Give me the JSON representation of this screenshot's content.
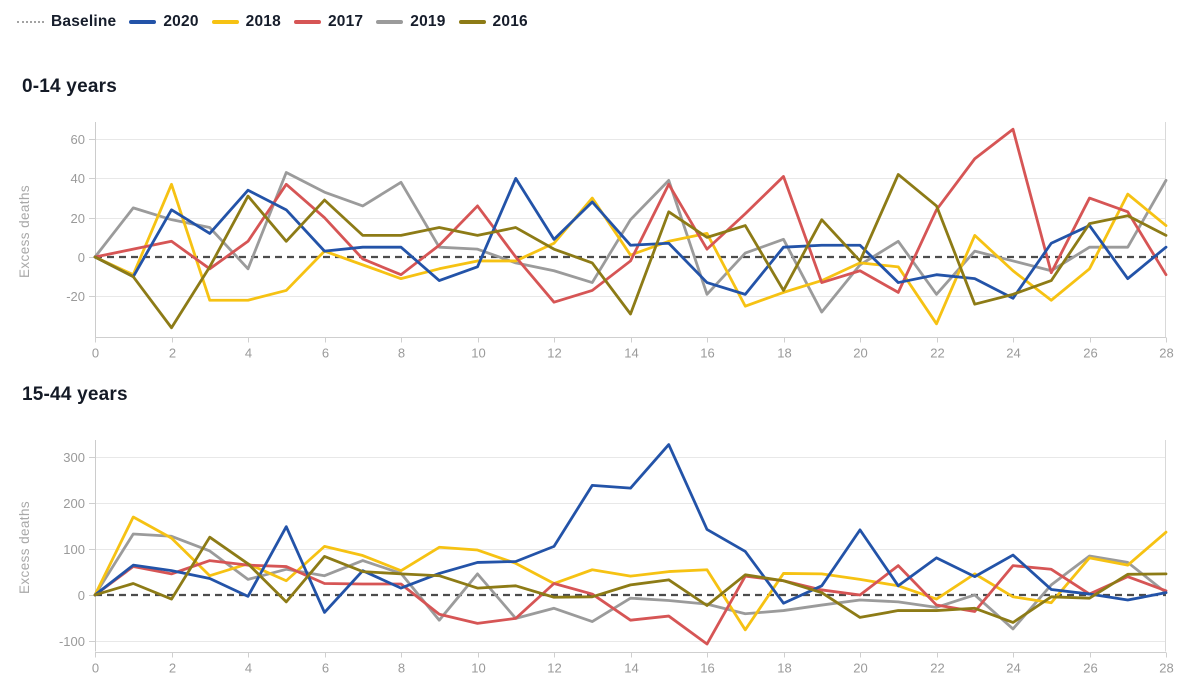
{
  "legend": {
    "items": [
      {
        "label": "Baseline",
        "style": "dotted",
        "color": "#a3a3a3"
      },
      {
        "label": "2020",
        "style": "solid",
        "color": "#2353a8"
      },
      {
        "label": "2018",
        "style": "solid",
        "color": "#f6c213"
      },
      {
        "label": "2017",
        "style": "solid",
        "color": "#d65555"
      },
      {
        "label": "2019",
        "style": "solid",
        "color": "#9b9b9b"
      },
      {
        "label": "2016",
        "style": "solid",
        "color": "#8d7b16"
      }
    ]
  },
  "chart_data": [
    {
      "type": "line",
      "title": "0-14 years",
      "ylabel": "Excess deaths",
      "xlabel": "",
      "xlim": [
        0,
        28
      ],
      "ylim": [
        -40.7,
        68.7
      ],
      "xticks": [
        0,
        2,
        4,
        6,
        8,
        10,
        12,
        14,
        16,
        18,
        20,
        22,
        24,
        26,
        28
      ],
      "yticks": [
        -20,
        0,
        20,
        40,
        60
      ],
      "grid": "horizontal",
      "baseline": {
        "value": 0,
        "style": "dashed",
        "color": "#4c4c4c"
      },
      "x": [
        0,
        1,
        2,
        3,
        4,
        5,
        6,
        7,
        8,
        9,
        10,
        11,
        12,
        13,
        14,
        15,
        16,
        17,
        18,
        19,
        20,
        21,
        22,
        23,
        24,
        25,
        26,
        27,
        28
      ],
      "series": [
        {
          "name": "2020",
          "color": "#2353a8",
          "values": [
            0,
            -10,
            24,
            12,
            34,
            24,
            3,
            5,
            5,
            -12,
            -5,
            40,
            9,
            28,
            6,
            7,
            -13,
            -19,
            5,
            6,
            6,
            -13,
            -9,
            -11,
            -21,
            7,
            16,
            -11,
            5
          ]
        },
        {
          "name": "2018",
          "color": "#f6c213",
          "values": [
            0,
            -9,
            37,
            -22,
            -22,
            -17,
            3,
            -4,
            -11,
            -6,
            -2,
            -2,
            7,
            30,
            1,
            8,
            12,
            -25,
            -18,
            -12,
            -3,
            -5,
            -34,
            11,
            -7,
            -22,
            -6,
            32,
            16
          ]
        },
        {
          "name": "2017",
          "color": "#d65555",
          "values": [
            0,
            4,
            8,
            -6,
            8,
            37,
            20,
            -1,
            -9,
            6,
            26,
            0,
            -23,
            -17,
            -2,
            37,
            4,
            22,
            41,
            -13,
            -7,
            -18,
            24,
            50,
            65,
            -8,
            30,
            23,
            -9
          ]
        },
        {
          "name": "2019",
          "color": "#9b9b9b",
          "values": [
            0,
            25,
            19,
            15,
            -6,
            43,
            33,
            26,
            38,
            5,
            4,
            -3,
            -7,
            -13,
            19,
            39,
            -19,
            2,
            9,
            -28,
            -4,
            8,
            -19,
            3,
            -2,
            -7,
            5,
            5,
            39
          ]
        },
        {
          "name": "2016",
          "color": "#8d7b16",
          "values": [
            0,
            -10,
            -36,
            -5,
            31,
            8,
            29,
            11,
            11,
            15,
            11,
            15,
            4,
            -3,
            -29,
            23,
            10,
            16,
            -17,
            19,
            -2,
            42,
            26,
            -24,
            -19,
            -12,
            17,
            21,
            11
          ]
        }
      ]
    },
    {
      "type": "line",
      "title": "15-44 years",
      "ylabel": "Excess deaths",
      "xlabel": "",
      "xlim": [
        0,
        28
      ],
      "ylim": [
        -123.3,
        338
      ],
      "xticks": [
        0,
        2,
        4,
        6,
        8,
        10,
        12,
        14,
        16,
        18,
        20,
        22,
        24,
        26,
        28
      ],
      "yticks": [
        -100,
        0,
        100,
        200,
        300
      ],
      "grid": "horizontal",
      "baseline": {
        "value": 0,
        "style": "dashed",
        "color": "#4c4c4c"
      },
      "x": [
        0,
        1,
        2,
        3,
        4,
        5,
        6,
        7,
        8,
        9,
        10,
        11,
        12,
        13,
        14,
        15,
        16,
        17,
        18,
        19,
        20,
        21,
        22,
        23,
        24,
        25,
        26,
        27,
        28
      ],
      "series": [
        {
          "name": "2020",
          "color": "#2353a8",
          "values": [
            0,
            65,
            53,
            36,
            -3,
            149,
            -38,
            53,
            15,
            47,
            71,
            73,
            106,
            239,
            233,
            328,
            143,
            95,
            -18,
            20,
            142,
            20,
            81,
            40,
            87,
            12,
            2,
            -11,
            5
          ]
        },
        {
          "name": "2018",
          "color": "#f6c213",
          "values": [
            0,
            170,
            124,
            42,
            68,
            31,
            106,
            86,
            53,
            104,
            98,
            69,
            25,
            55,
            41,
            51,
            55,
            -76,
            47,
            46,
            34,
            20,
            -9,
            46,
            -4,
            -17,
            81,
            65,
            137
          ]
        },
        {
          "name": "2017",
          "color": "#d65555",
          "values": [
            0,
            62,
            46,
            75,
            65,
            62,
            25,
            24,
            24,
            -42,
            -62,
            -51,
            25,
            2,
            -55,
            -46,
            -107,
            41,
            31,
            11,
            0,
            64,
            -22,
            -36,
            64,
            56,
            2,
            40,
            9
          ]
        },
        {
          "name": "2019",
          "color": "#9b9b9b",
          "values": [
            0,
            133,
            128,
            96,
            34,
            56,
            42,
            75,
            47,
            -55,
            46,
            -51,
            -29,
            -58,
            -7,
            -12,
            -20,
            -41,
            -34,
            -22,
            -11,
            -15,
            -27,
            0,
            -74,
            22,
            85,
            71,
            5
          ]
        },
        {
          "name": "2016",
          "color": "#8d7b16",
          "values": [
            0,
            25,
            -9,
            126,
            68,
            -15,
            84,
            51,
            46,
            42,
            15,
            20,
            -5,
            -4,
            22,
            33,
            -23,
            44,
            31,
            5,
            -49,
            -34,
            -34,
            -29,
            -60,
            -4,
            -7,
            45,
            46
          ]
        }
      ]
    }
  ]
}
